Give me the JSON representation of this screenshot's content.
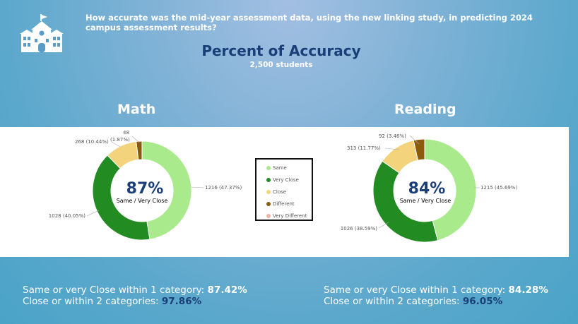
{
  "header": {
    "question": "How accurate was the mid-year assessment data, using the new linking study, in predicting 2024 campus assessment results?",
    "title": "Percent of Accuracy",
    "subtitle": "2,500 students",
    "logo_icon": "school-building-icon"
  },
  "legend": {
    "items": [
      {
        "label": "Same",
        "color": "#a8ea8c"
      },
      {
        "label": "Very Close",
        "color": "#228b22"
      },
      {
        "label": "Close",
        "color": "#f3d37c"
      },
      {
        "label": "Different",
        "color": "#8b5a0d"
      },
      {
        "label": "Very Different",
        "color": "#f0b4a4"
      }
    ]
  },
  "math": {
    "title": "Math",
    "center_pct": "87%",
    "center_label": "Same / Very Close",
    "summary_line1": "Same or very Close within 1 category: ",
    "summary_pct1": "87.42%",
    "summary_line2": "Close or within 2 categories: ",
    "summary_pct2": "97.86%",
    "labels": [
      "1216 (47.37%)",
      "1028 (40.05%)",
      "268 (10.44%)",
      "48",
      "(1.87%)"
    ]
  },
  "reading": {
    "title": "Reading",
    "center_pct": "84%",
    "center_label": "Same / Very Close",
    "summary_line1": "Same or very Close within 1 category: ",
    "summary_pct1": "84.28%",
    "summary_line2": "Close or within 2 categories: ",
    "summary_pct2": "96.05%",
    "labels": [
      "1215 (45.69%)",
      "1026 (38.59%)",
      "313 (11.77%)",
      "92 (3.46%)"
    ]
  },
  "chart_data": [
    {
      "type": "pie",
      "title": "Math",
      "categories": [
        "Same",
        "Very Close",
        "Close",
        "Different",
        "Very Different"
      ],
      "values": [
        1216,
        1028,
        268,
        48,
        0
      ],
      "percents": [
        47.37,
        40.05,
        10.44,
        1.87,
        0
      ]
    },
    {
      "type": "pie",
      "title": "Reading",
      "categories": [
        "Same",
        "Very Close",
        "Close",
        "Different",
        "Very Different"
      ],
      "values": [
        1215,
        1026,
        313,
        92,
        0
      ],
      "percents": [
        45.69,
        38.59,
        11.77,
        3.46,
        0
      ]
    }
  ]
}
